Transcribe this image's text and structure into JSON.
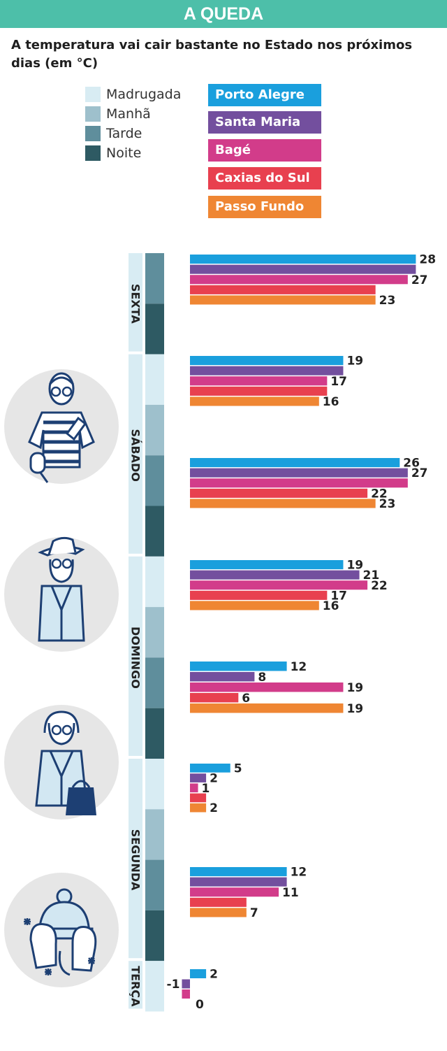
{
  "header": {
    "title": "A QUEDA",
    "subtitle": "A temperatura vai cair bastante no Estado nos próximos dias (em °C)"
  },
  "period_legend": [
    {
      "label": "Madrugada",
      "color": "#d8ecf3"
    },
    {
      "label": "Manhã",
      "color": "#9ec0cc"
    },
    {
      "label": "Tarde",
      "color": "#5f8e9c"
    },
    {
      "label": "Noite",
      "color": "#2e5a63"
    }
  ],
  "city_legend": [
    {
      "label": "Porto Alegre",
      "color": "#1a9fdd"
    },
    {
      "label": "Santa Maria",
      "color": "#734f9e"
    },
    {
      "label": "Bagé",
      "color": "#d23c8a"
    },
    {
      "label": "Caxias do Sul",
      "color": "#e8404f"
    },
    {
      "label": "Passo Fundo",
      "color": "#ef8633"
    }
  ],
  "icons": [
    "summer-person-icon",
    "hat-person-icon",
    "coat-bag-person-icon",
    "winter-hat-mittens-icon",
    "snowflake-icon"
  ],
  "chart_data": {
    "type": "bar",
    "orientation": "horizontal",
    "title": "A QUEDA",
    "subtitle": "A temperatura vai cair bastante no Estado nos próximos dias (em °C)",
    "unit": "°C",
    "series_names": [
      "Porto Alegre",
      "Santa Maria",
      "Bagé",
      "Caxias do Sul",
      "Passo Fundo"
    ],
    "days": [
      {
        "label": "SEXTA",
        "periods": [
          "Tarde",
          "Noite"
        ]
      },
      {
        "label": "SÁBADO",
        "periods": [
          "Madrugada",
          "Manhã",
          "Tarde",
          "Noite"
        ]
      },
      {
        "label": "DOMINGO",
        "periods": [
          "Madrugada",
          "Manhã",
          "Tarde",
          "Noite"
        ]
      },
      {
        "label": "SEGUNDA",
        "periods": [
          "Madrugada",
          "Manhã",
          "Tarde",
          "Noite"
        ]
      },
      {
        "label": "TERÇA",
        "periods": [
          "Madrugada"
        ]
      }
    ],
    "groups": [
      {
        "day": "SEXTA",
        "values": [
          28,
          28,
          27,
          23,
          23
        ],
        "labels": [
          "28",
          "",
          "27",
          "",
          "23"
        ]
      },
      {
        "day": "SÁBADO",
        "values": [
          19,
          19,
          17,
          17,
          16
        ],
        "labels": [
          "19",
          "",
          "17",
          "",
          "16"
        ]
      },
      {
        "day": "SÁBADO",
        "values": [
          26,
          27,
          27,
          22,
          23
        ],
        "labels": [
          "26",
          "27",
          "",
          "22",
          "23"
        ]
      },
      {
        "day": "DOMINGO",
        "values": [
          19,
          21,
          22,
          17,
          16
        ],
        "labels": [
          "19",
          "21",
          "22",
          "17",
          "16"
        ]
      },
      {
        "day": "DOMINGO",
        "values": [
          12,
          8,
          19,
          6,
          19
        ],
        "labels": [
          "12",
          "8",
          "19",
          "6",
          "19"
        ]
      },
      {
        "day": "SEGUNDA",
        "values": [
          5,
          2,
          1,
          2,
          2
        ],
        "labels": [
          "5",
          "2",
          "1",
          "",
          "2"
        ]
      },
      {
        "day": "SEGUNDA",
        "values": [
          12,
          12,
          11,
          7,
          7
        ],
        "labels": [
          "12",
          "",
          "11",
          "",
          "7"
        ]
      },
      {
        "day": "TERÇA",
        "values": [
          2,
          -1,
          -1,
          0,
          0
        ],
        "labels": [
          "2",
          "-1",
          "",
          "0",
          ""
        ]
      }
    ],
    "legend_position": "top",
    "grid": false
  }
}
